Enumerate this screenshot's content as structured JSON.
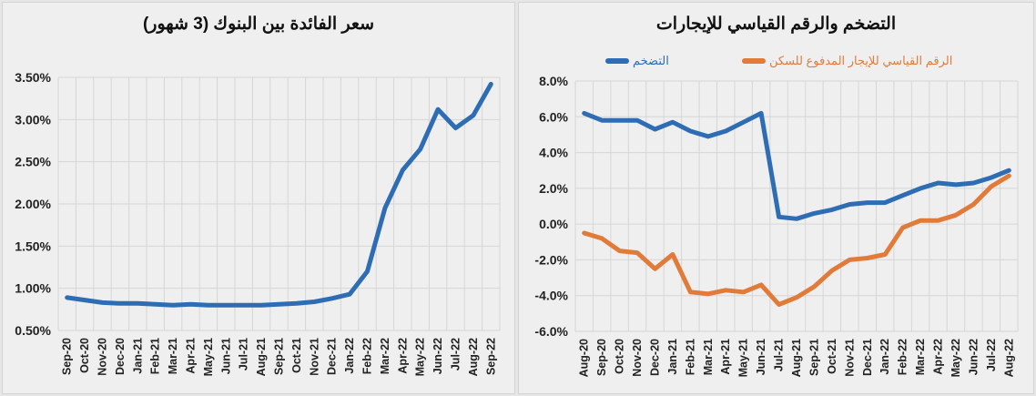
{
  "chart_data": [
    {
      "type": "line",
      "title": "سعر الفائدة بين البنوك (3 شهور)",
      "xlabel": "",
      "ylabel": "",
      "ylim": [
        0.005,
        0.035
      ],
      "yticks": [
        "3.50%",
        "3.00%",
        "2.50%",
        "2.00%",
        "1.50%",
        "1.00%",
        "0.50%"
      ],
      "grid": true,
      "legend": null,
      "categories": [
        "Sep-20",
        "Oct-20",
        "Nov-20",
        "Dec-20",
        "Jan-21",
        "Feb-21",
        "Mar-21",
        "Apr-21",
        "May-21",
        "Jun-21",
        "Jul-21",
        "Aug-21",
        "Sep-21",
        "Oct-21",
        "Nov-21",
        "Dec-21",
        "Jan-22",
        "Feb-22",
        "Mar-22",
        "Apr-22",
        "May-22",
        "Jun-22",
        "Jul-22",
        "Aug-22",
        "Sep-22"
      ],
      "series": [
        {
          "name": "سعر الفائدة بين البنوك (3 شهور)",
          "color": "#2e6db4",
          "values": [
            0.89,
            0.86,
            0.83,
            0.82,
            0.82,
            0.81,
            0.8,
            0.81,
            0.8,
            0.8,
            0.8,
            0.8,
            0.81,
            0.82,
            0.84,
            0.88,
            0.93,
            1.2,
            1.95,
            2.4,
            2.65,
            3.12,
            2.9,
            3.05,
            3.42
          ]
        }
      ]
    },
    {
      "type": "line",
      "title": "التضخم والرقم القياسي للإيجارات",
      "xlabel": "",
      "ylabel": "",
      "ylim": [
        -6.0,
        8.0
      ],
      "yticks": [
        "8.0%",
        "6.0%",
        "4.0%",
        "2.0%",
        "0.0%",
        "-2.0%",
        "-4.0%",
        "-6.0%"
      ],
      "grid": true,
      "legend_position": "top",
      "categories": [
        "Aug-20",
        "Sep-20",
        "Oct-20",
        "Nov-20",
        "Dec-20",
        "Jan-21",
        "Feb-21",
        "Mar-21",
        "Apr-21",
        "May-21",
        "Jun-21",
        "Jul-21",
        "Aug-21",
        "Sep-21",
        "Oct-21",
        "Nov-21",
        "Dec-21",
        "Jan-22",
        "Feb-22",
        "Mar-22",
        "Apr-22",
        "May-22",
        "Jun-22",
        "Jul-22",
        "Aug-22"
      ],
      "series": [
        {
          "name": "التضخم",
          "color": "#2e6db4",
          "values": [
            6.2,
            5.8,
            5.8,
            5.8,
            5.3,
            5.7,
            5.2,
            4.9,
            5.2,
            5.7,
            6.2,
            0.4,
            0.3,
            0.6,
            0.8,
            1.1,
            1.2,
            1.2,
            1.6,
            2.0,
            2.3,
            2.2,
            2.3,
            2.6,
            3.0
          ]
        },
        {
          "name": "الرقم القياسي للإيجار المدفوع للسكن",
          "color": "#e07b39",
          "values": [
            -0.5,
            -0.8,
            -1.5,
            -1.6,
            -2.5,
            -1.7,
            -3.8,
            -3.9,
            -3.7,
            -3.8,
            -3.4,
            -4.5,
            -4.1,
            -3.5,
            -2.6,
            -2.0,
            -1.9,
            -1.7,
            -0.2,
            0.2,
            0.2,
            0.5,
            1.1,
            2.1,
            2.7
          ]
        }
      ]
    }
  ]
}
